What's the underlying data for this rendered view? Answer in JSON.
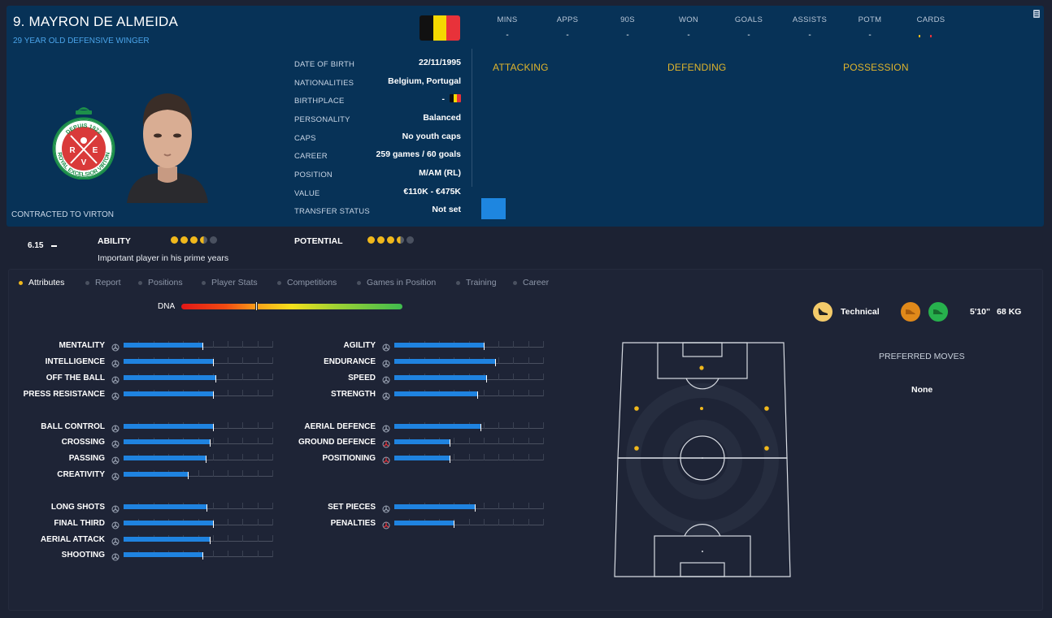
{
  "player": {
    "name": "9. MAYRON DE ALMEIDA",
    "subtitle": "29 YEAR OLD DEFENSIVE WINGER",
    "contract": "CONTRACTED TO VIRTON"
  },
  "club_badge": {
    "top_text": "DEPUIS 1922",
    "ring_text": "ROYAL EXCELSIOR VIRTON",
    "letters": [
      "R",
      "E",
      "V"
    ]
  },
  "details": [
    {
      "label": "DATE OF BIRTH",
      "value": "22/11/1995"
    },
    {
      "label": "NATIONALITIES",
      "value": "Belgium, Portugal"
    },
    {
      "label": "BIRTHPLACE",
      "value": "-"
    },
    {
      "label": "PERSONALITY",
      "value": "Balanced"
    },
    {
      "label": "CAPS",
      "value": "No youth caps"
    },
    {
      "label": "CAREER",
      "value": "259 games /  60  goals"
    },
    {
      "label": "POSITION",
      "value": "M/AM (RL)"
    },
    {
      "label": "VALUE",
      "value": "€110K - €475K"
    },
    {
      "label": "TRANSFER STATUS",
      "value": "Not set"
    }
  ],
  "season_stats": [
    {
      "label": "MINS",
      "value": "-"
    },
    {
      "label": "APPS",
      "value": "-"
    },
    {
      "label": "90S",
      "value": "-"
    },
    {
      "label": "WON",
      "value": "-"
    },
    {
      "label": "GOALS",
      "value": "-"
    },
    {
      "label": "ASSISTS",
      "value": "-"
    },
    {
      "label": "POTM",
      "value": "-"
    },
    {
      "label": "CARDS",
      "value": ""
    }
  ],
  "sections": [
    "ATTACKING",
    "DEFENDING",
    "POSSESSION"
  ],
  "ability": {
    "rating": "6.15",
    "ability_label": "ABILITY",
    "potential_label": "POTENTIAL",
    "description": "Important player in his prime years",
    "ability_stars": 3.5,
    "potential_stars": 3.5,
    "max_stars": 5
  },
  "tabs": [
    {
      "label": "Attributes",
      "active": true
    },
    {
      "label": "Report",
      "active": false
    },
    {
      "label": "Positions",
      "active": false
    },
    {
      "label": "Player Stats",
      "active": false
    },
    {
      "label": "Competitions",
      "active": false
    },
    {
      "label": "Games in Position",
      "active": false
    },
    {
      "label": "Training",
      "active": false
    },
    {
      "label": "Career",
      "active": false
    }
  ],
  "dna": {
    "label": "DNA",
    "level": 0.34
  },
  "attributes_left": [
    {
      "name": "MENTALITY",
      "level": 0.53
    },
    {
      "name": "INTELLIGENCE",
      "level": 0.6
    },
    {
      "name": "OFF THE BALL",
      "level": 0.62
    },
    {
      "name": "PRESS RESISTANCE",
      "level": 0.6
    },
    {
      "name": "BALL CONTROL",
      "level": 0.6
    },
    {
      "name": "CROSSING",
      "level": 0.58
    },
    {
      "name": "PASSING",
      "level": 0.55
    },
    {
      "name": "CREATIVITY",
      "level": 0.43
    },
    {
      "name": "LONG SHOTS",
      "level": 0.56
    },
    {
      "name": "FINAL THIRD",
      "level": 0.6
    },
    {
      "name": "AERIAL ATTACK",
      "level": 0.58
    },
    {
      "name": "SHOOTING",
      "level": 0.53
    }
  ],
  "attributes_right": [
    {
      "name": "AGILITY",
      "level": 0.6
    },
    {
      "name": "ENDURANCE",
      "level": 0.68
    },
    {
      "name": "SPEED",
      "level": 0.62
    },
    {
      "name": "STRENGTH",
      "level": 0.56
    },
    {
      "name": "AERIAL DEFENCE",
      "level": 0.58
    },
    {
      "name": "GROUND DEFENCE",
      "level": 0.37
    },
    {
      "name": "POSITIONING",
      "level": 0.37
    },
    {
      "name": "SET PIECES",
      "level": 0.54
    },
    {
      "name": "PENALTIES",
      "level": 0.4
    }
  ],
  "profile": {
    "style": "Technical",
    "height": "5'10\"",
    "weight": "68 KG"
  },
  "preferred_moves": {
    "title": "PREFERRED MOVES",
    "value": "None"
  },
  "colors": {
    "accent_blue": "#1f83e0",
    "gold": "#f0b81c",
    "header_bg": "#073257"
  }
}
